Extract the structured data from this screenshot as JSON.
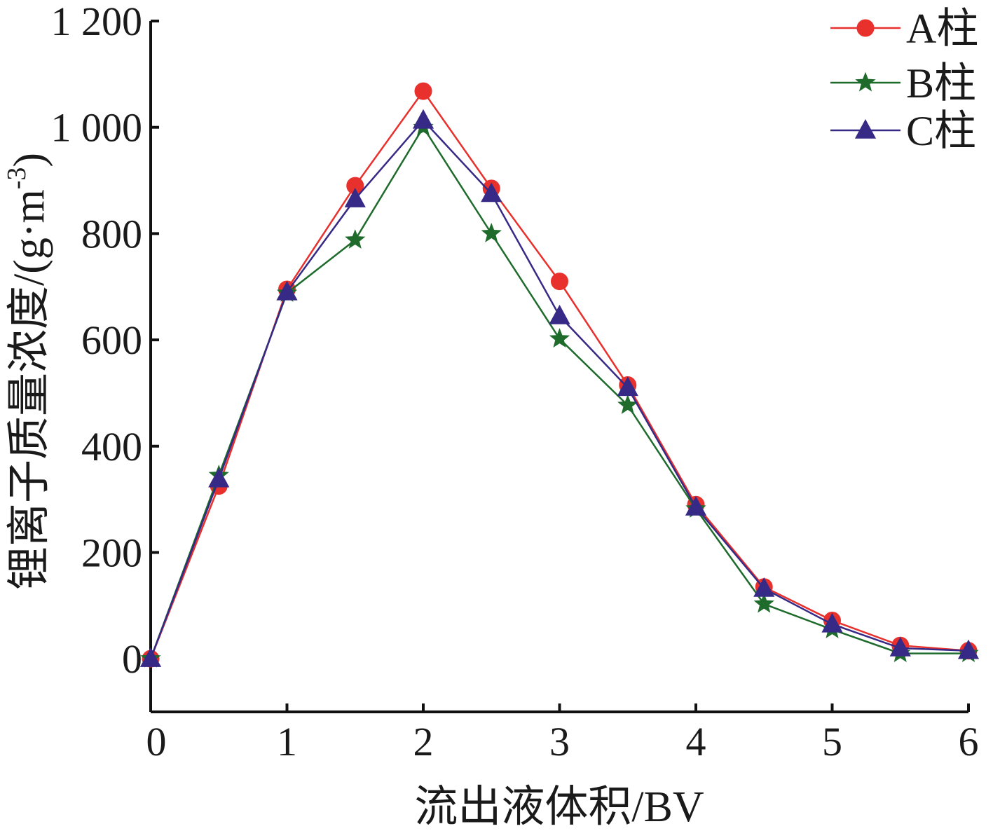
{
  "chart_data": {
    "type": "line",
    "xlabel": "流出液体积/BV",
    "ylabel": {
      "main": "锂离子质量浓度/(g·m",
      "sup": "-3",
      "close": ")"
    },
    "xlim": [
      0,
      6
    ],
    "ylim": [
      -100,
      1200
    ],
    "x_ticks": [
      0,
      1,
      2,
      3,
      4,
      5,
      6
    ],
    "x_tick_labels": [
      "0",
      "1",
      "2",
      "3",
      "4",
      "5",
      "6"
    ],
    "y_ticks": [
      0,
      200,
      400,
      600,
      800,
      1000,
      1200
    ],
    "y_tick_labels": [
      "0",
      "200",
      "400",
      "600",
      "800",
      "1 000",
      "1 200"
    ],
    "grid": false,
    "legend_position": "top-right",
    "x": [
      0,
      0.5,
      1,
      1.5,
      2,
      2.5,
      3,
      3.5,
      4,
      4.5,
      5,
      5.5,
      6
    ],
    "series": [
      {
        "name": "A柱",
        "color": "#e8302c",
        "marker": "circle",
        "values": [
          0,
          325,
          695,
          890,
          1068,
          885,
          710,
          515,
          290,
          135,
          72,
          25,
          15
        ]
      },
      {
        "name": "B柱",
        "color": "#1e6b2c",
        "marker": "star",
        "values": [
          0,
          345,
          688,
          788,
          1000,
          800,
          602,
          477,
          282,
          103,
          55,
          10,
          10
        ]
      },
      {
        "name": "C柱",
        "color": "#362a86",
        "marker": "triangle",
        "values": [
          0,
          338,
          690,
          865,
          1013,
          875,
          645,
          510,
          285,
          132,
          65,
          20,
          15
        ]
      }
    ]
  }
}
